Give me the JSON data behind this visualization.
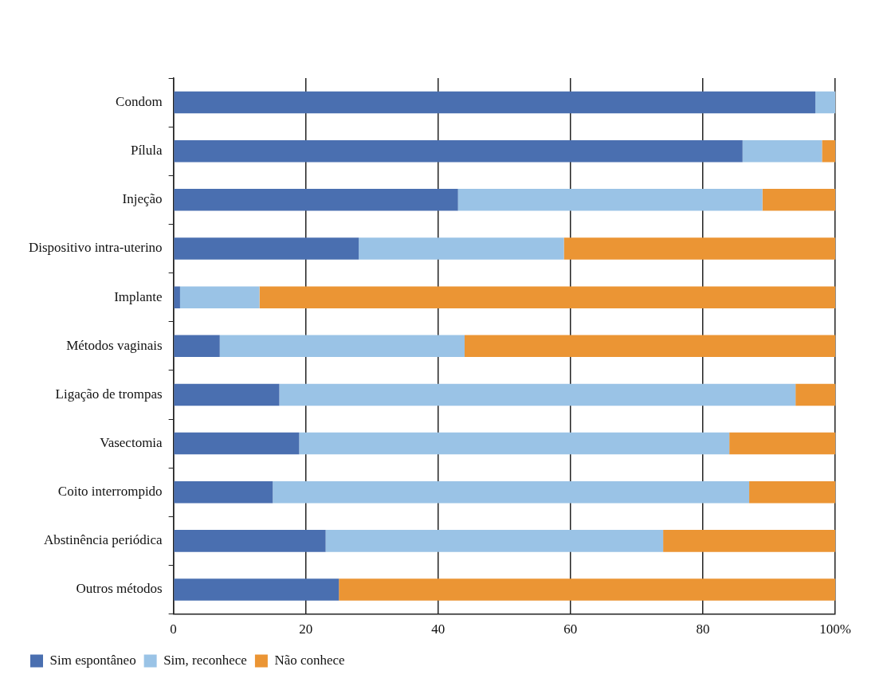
{
  "chart_data": {
    "type": "bar",
    "orientation": "horizontal",
    "stacked": true,
    "categories": [
      "Condom",
      "Pílula",
      "Injeção",
      "Dispositivo intra-uterino",
      "Implante",
      "Métodos vaginais",
      "Ligação de trompas",
      "Vasectomia",
      "Coito interrompido",
      "Abstinência periódica",
      "Outros métodos"
    ],
    "series": [
      {
        "name": "Sim espontâneo",
        "color": "#4a6fb0",
        "values": [
          97,
          86,
          43,
          28,
          1,
          7,
          16,
          19,
          15,
          23,
          25
        ]
      },
      {
        "name": "Sim, reconhece",
        "color": "#9ac3e6",
        "values": [
          3,
          12,
          46,
          31,
          12,
          37,
          78,
          65,
          72,
          51,
          0
        ]
      },
      {
        "name": "Não conhece",
        "color": "#eb9534",
        "values": [
          0,
          2,
          11,
          41,
          87,
          56,
          6,
          16,
          13,
          26,
          75
        ]
      }
    ],
    "xlim": [
      0,
      100
    ],
    "xticks": [
      0,
      20,
      40,
      60,
      80,
      {
        "value": 100,
        "label": "100%"
      }
    ],
    "grid": "x",
    "legend": "bottom left"
  }
}
